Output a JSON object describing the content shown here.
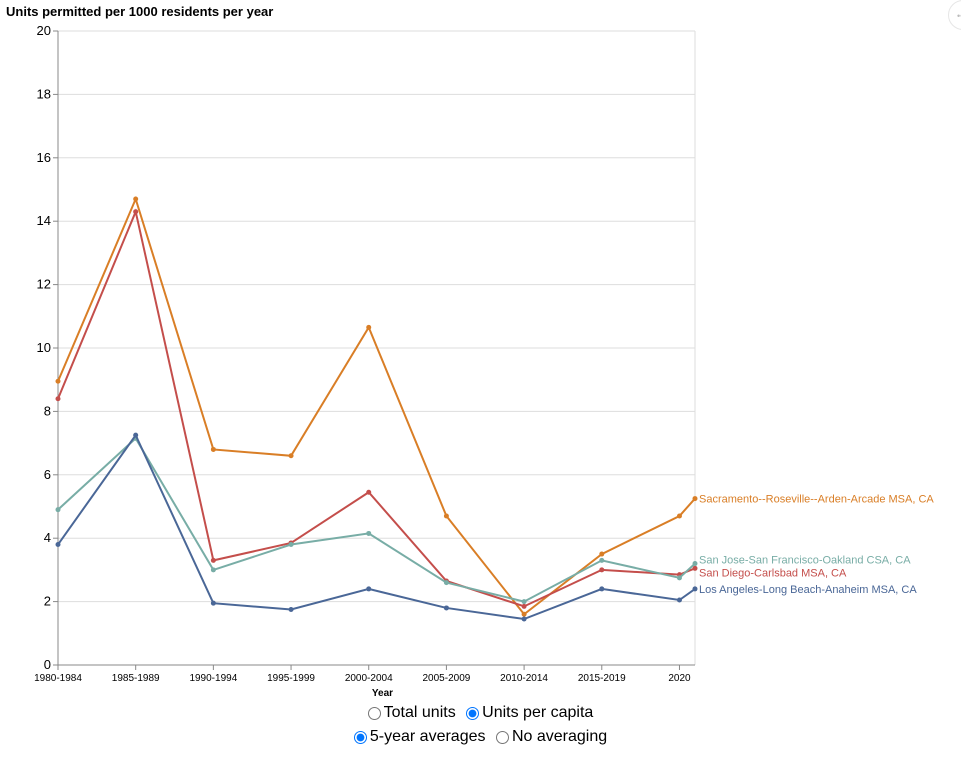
{
  "chart_data": {
    "type": "line",
    "title": "Units permitted per 1000 residents per year",
    "xlabel": "Year",
    "ylabel": "",
    "ylim": [
      0,
      20
    ],
    "yticks": [
      0,
      2,
      4,
      6,
      8,
      10,
      12,
      14,
      16,
      18,
      20
    ],
    "grid": true,
    "categories": [
      "1980-1984",
      "1985-1989",
      "1990-1994",
      "1995-1999",
      "2000-2004",
      "2005-2009",
      "2010-2014",
      "2015-2019",
      "2020"
    ],
    "series": [
      {
        "name": "Sacramento--Roseville--Arden-Arcade MSA, CA",
        "color": "#d97e26",
        "x": [
          1980,
          1985,
          1990,
          1995,
          2000,
          2005,
          2010,
          2015,
          2020,
          2021
        ],
        "values": [
          8.95,
          14.7,
          6.8,
          6.6,
          10.65,
          4.7,
          1.6,
          3.5,
          4.7,
          5.25
        ]
      },
      {
        "name": "San Diego-Carlsbad MSA, CA",
        "color": "#c44e4b",
        "x": [
          1980,
          1985,
          1990,
          1995,
          2000,
          2005,
          2010,
          2015,
          2020,
          2021
        ],
        "values": [
          8.4,
          14.3,
          3.3,
          3.85,
          5.45,
          2.65,
          1.85,
          3.0,
          2.85,
          3.05
        ]
      },
      {
        "name": "San Jose-San Francisco-Oakland CSA, CA",
        "color": "#78ada6",
        "x": [
          1980,
          1985,
          1990,
          1995,
          2000,
          2005,
          2010,
          2015,
          2020,
          2021
        ],
        "values": [
          4.9,
          7.15,
          3.0,
          3.8,
          4.15,
          2.6,
          2.0,
          3.3,
          2.75,
          3.2
        ]
      },
      {
        "name": "Los Angeles-Long Beach-Anaheim MSA, CA",
        "color": "#4a6797",
        "x": [
          1980,
          1985,
          1990,
          1995,
          2000,
          2005,
          2010,
          2015,
          2020,
          2021
        ],
        "values": [
          3.8,
          7.25,
          1.95,
          1.75,
          2.4,
          1.8,
          1.45,
          2.4,
          2.05,
          2.4
        ]
      }
    ]
  },
  "controls": {
    "metric": {
      "options": [
        "Total units",
        "Units per capita"
      ],
      "selected": "Units per capita"
    },
    "averaging": {
      "options": [
        "5-year averages",
        "No averaging"
      ],
      "selected": "5-year averages"
    }
  },
  "corner_icon": "ellipsis-icon"
}
